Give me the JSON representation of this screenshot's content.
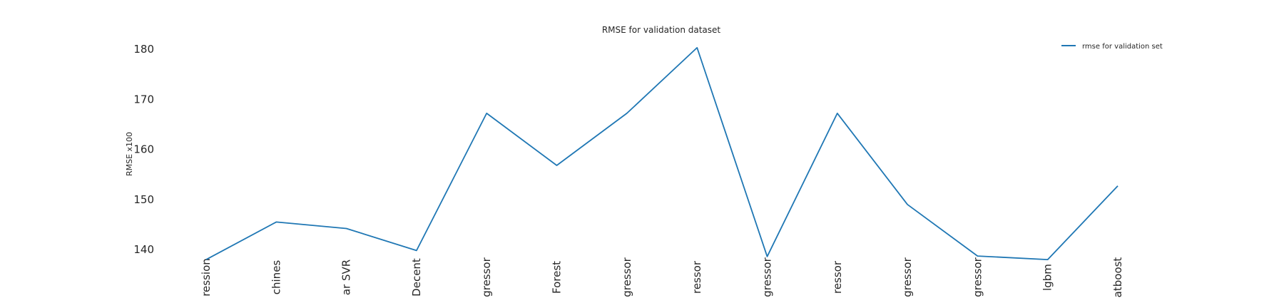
{
  "chart_data": {
    "type": "line",
    "title": "RMSE for validation dataset",
    "xlabel": "",
    "ylabel": "RMSE x100",
    "ylim": [
      136,
      182
    ],
    "yticks": [
      140,
      150,
      160,
      170,
      180
    ],
    "grid": false,
    "legend_position": "top-right",
    "categories": [
      "ression",
      "chines",
      "ar SVR",
      "Decent",
      "gressor",
      "Forest",
      "gressor",
      "ressor",
      "gressor",
      "ressor",
      "gressor",
      "gressor",
      "lgbm",
      "atboost"
    ],
    "series": [
      {
        "name": "rmse for validation set",
        "color": "#1f77b4",
        "values": [
          138.0,
          145.5,
          144.2,
          139.8,
          167.2,
          156.8,
          167.2,
          180.3,
          138.6,
          167.2,
          149.0,
          138.7,
          138.0,
          152.7
        ]
      }
    ]
  }
}
